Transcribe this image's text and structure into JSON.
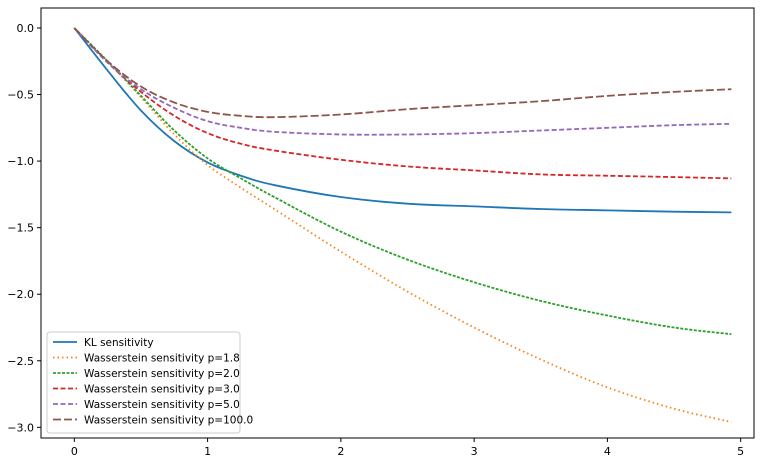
{
  "chart_data": {
    "type": "line",
    "title": "",
    "xlabel": "",
    "ylabel": "",
    "xlim": [
      -0.25,
      5.1
    ],
    "ylim": [
      -3.08,
      0.15
    ],
    "xticks": [
      0,
      1,
      2,
      3,
      4,
      5
    ],
    "xtick_labels": [
      "0",
      "1",
      "2",
      "3",
      "4",
      "5"
    ],
    "yticks": [
      0.0,
      -0.5,
      -1.0,
      -1.5,
      -2.0,
      -2.5,
      -3.0
    ],
    "ytick_labels": [
      "0.0",
      "−0.5",
      "−1.0",
      "−1.5",
      "−2.0",
      "−2.5",
      "−3.0"
    ],
    "grid": false,
    "legend_position": "lower-left",
    "series": [
      {
        "name": "KL sensitivity",
        "color": "#1f77b4",
        "style": "solid",
        "x": [
          0,
          0.25,
          0.5,
          0.75,
          1.0,
          1.25,
          1.5,
          2.0,
          2.5,
          3.0,
          3.5,
          4.0,
          4.5,
          4.93
        ],
        "y": [
          0,
          -0.32,
          -0.62,
          -0.85,
          -1.01,
          -1.11,
          -1.18,
          -1.27,
          -1.32,
          -1.34,
          -1.36,
          -1.37,
          -1.38,
          -1.385
        ]
      },
      {
        "name": "Wasserstein sensitivity p=1.8",
        "color": "#ff7f0e",
        "style": "dotted",
        "x": [
          0,
          0.25,
          0.5,
          0.75,
          1.0,
          1.25,
          1.5,
          2.0,
          2.5,
          3.0,
          3.5,
          4.0,
          4.5,
          4.93
        ],
        "y": [
          0,
          -0.25,
          -0.52,
          -0.8,
          -1.03,
          -1.2,
          -1.36,
          -1.68,
          -1.98,
          -2.25,
          -2.49,
          -2.7,
          -2.86,
          -2.96
        ]
      },
      {
        "name": "Wasserstein sensitivity p=2.0",
        "color": "#2ca02c",
        "style": "dashed-fine",
        "x": [
          0,
          0.25,
          0.5,
          0.75,
          1.0,
          1.25,
          1.5,
          2.0,
          2.5,
          3.0,
          3.5,
          4.0,
          4.5,
          4.93
        ],
        "y": [
          0,
          -0.25,
          -0.51,
          -0.77,
          -0.98,
          -1.13,
          -1.27,
          -1.53,
          -1.74,
          -1.91,
          -2.05,
          -2.16,
          -2.25,
          -2.3
        ]
      },
      {
        "name": "Wasserstein sensitivity p=3.0",
        "color": "#d62728",
        "style": "dashed",
        "x": [
          0,
          0.25,
          0.5,
          0.75,
          1.0,
          1.25,
          1.5,
          2.0,
          2.5,
          3.0,
          3.5,
          4.0,
          4.5,
          4.93
        ],
        "y": [
          0,
          -0.26,
          -0.48,
          -0.66,
          -0.79,
          -0.87,
          -0.92,
          -0.99,
          -1.04,
          -1.07,
          -1.1,
          -1.11,
          -1.12,
          -1.13
        ]
      },
      {
        "name": "Wasserstein sensitivity p=5.0",
        "color": "#9467bd",
        "style": "dashed",
        "x": [
          0,
          0.25,
          0.5,
          0.75,
          1.0,
          1.25,
          1.5,
          2.0,
          2.5,
          3.0,
          3.5,
          4.0,
          4.5,
          4.93
        ],
        "y": [
          0,
          -0.26,
          -0.46,
          -0.6,
          -0.7,
          -0.75,
          -0.78,
          -0.8,
          -0.8,
          -0.79,
          -0.77,
          -0.75,
          -0.73,
          -0.72
        ]
      },
      {
        "name": "Wasserstein sensitivity p=100.0",
        "color": "#8c564b",
        "style": "dashed-long",
        "x": [
          0,
          0.25,
          0.5,
          0.75,
          1.0,
          1.25,
          1.5,
          2.0,
          2.5,
          3.0,
          3.5,
          4.0,
          4.5,
          4.93
        ],
        "y": [
          0,
          -0.25,
          -0.44,
          -0.56,
          -0.63,
          -0.66,
          -0.67,
          -0.65,
          -0.61,
          -0.58,
          -0.55,
          -0.51,
          -0.48,
          -0.46
        ]
      }
    ]
  }
}
